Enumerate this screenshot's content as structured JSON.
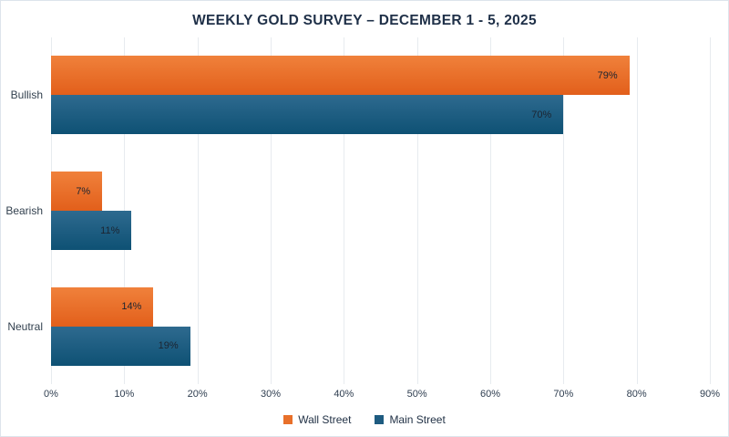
{
  "title": "WEEKLY GOLD SURVEY – DECEMBER 1 - 5, 2025",
  "colors": {
    "wall_street": "#e8702a",
    "main_street": "#1e5b80",
    "gridline": "#e7ebef",
    "title_text": "#1f3048"
  },
  "chart_data": {
    "type": "bar",
    "orientation": "horizontal",
    "title": "WEEKLY GOLD SURVEY – DECEMBER 1 - 5, 2025",
    "categories": [
      "Bullish",
      "Bearish",
      "Neutral"
    ],
    "series": [
      {
        "name": "Wall Street",
        "color": "#e8702a",
        "values": [
          79,
          7,
          14
        ]
      },
      {
        "name": "Main Street",
        "color": "#1e5b80",
        "values": [
          70,
          11,
          19
        ]
      }
    ],
    "data_labels": {
      "Wall Street": [
        "79%",
        "7%",
        "14%"
      ],
      "Main Street": [
        "70%",
        "11%",
        "19%"
      ]
    },
    "xlabel": "",
    "ylabel": "",
    "xlim": [
      0,
      90
    ],
    "x_tick_step": 10,
    "x_tick_labels": [
      "0%",
      "10%",
      "20%",
      "30%",
      "40%",
      "50%",
      "60%",
      "70%",
      "80%",
      "90%"
    ],
    "grid": true,
    "legend_position": "bottom"
  }
}
